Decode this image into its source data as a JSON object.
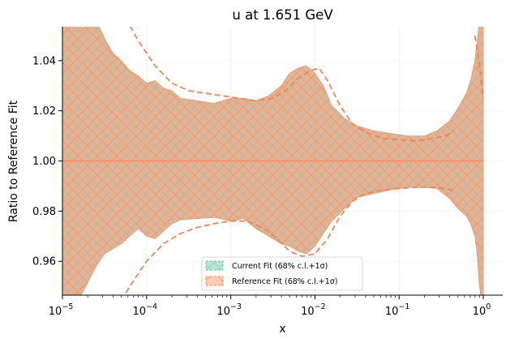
{
  "chart_data": {
    "type": "area",
    "title": "u at 1.651 GeV",
    "xlabel": "x",
    "ylabel": "Ratio to Reference Fit",
    "x_scale": "log",
    "xlim": [
      1e-05,
      1.0
    ],
    "ylim": [
      0.9465,
      1.0535
    ],
    "x_ticks": [
      {
        "value": 1e-05,
        "base": "10",
        "exp": "−5"
      },
      {
        "value": 0.0001,
        "base": "10",
        "exp": "−4"
      },
      {
        "value": 0.001,
        "base": "10",
        "exp": "−3"
      },
      {
        "value": 0.01,
        "base": "10",
        "exp": "−2"
      },
      {
        "value": 0.1,
        "base": "10",
        "exp": "−1"
      },
      {
        "value": 1.0,
        "base": "10",
        "exp": "0"
      }
    ],
    "y_ticks": [
      {
        "value": 0.96,
        "label": "0.96"
      },
      {
        "value": 0.98,
        "label": "0.98"
      },
      {
        "value": 1.0,
        "label": "1.00"
      },
      {
        "value": 1.02,
        "label": "1.02"
      },
      {
        "value": 1.04,
        "label": "1.04"
      }
    ],
    "grid": true,
    "legend_position": "lower-center",
    "series": [
      {
        "name": "Current Fit (68% c.l.+1σ)",
        "color": "#66c2a5",
        "hatch": "xx",
        "central": 1.0,
        "band": [
          [
            -5.0,
            0.938,
            1.062
          ],
          [
            -4.8,
            0.945,
            1.062
          ],
          [
            -4.6,
            0.958,
            1.056
          ],
          [
            -4.5,
            0.963,
            1.049
          ],
          [
            -4.4,
            0.965,
            1.043
          ],
          [
            -4.3,
            0.967,
            1.04
          ],
          [
            -4.2,
            0.97,
            1.036
          ],
          [
            -4.1,
            0.973,
            1.034
          ],
          [
            -4.0,
            0.97,
            1.031
          ],
          [
            -3.9,
            0.969,
            1.032
          ],
          [
            -3.8,
            0.972,
            1.029
          ],
          [
            -3.7,
            0.975,
            1.028
          ],
          [
            -3.6,
            0.9765,
            1.025
          ],
          [
            -3.4,
            0.977,
            1.024
          ],
          [
            -3.2,
            0.9775,
            1.023
          ],
          [
            -3.0,
            0.976,
            1.025
          ],
          [
            -2.85,
            0.977,
            1.025
          ],
          [
            -2.7,
            0.973,
            1.024
          ],
          [
            -2.55,
            0.97,
            1.026
          ],
          [
            -2.4,
            0.967,
            1.03
          ],
          [
            -2.3,
            0.966,
            1.035
          ],
          [
            -2.2,
            0.964,
            1.037
          ],
          [
            -2.1,
            0.963,
            1.038
          ],
          [
            -2.0,
            0.966,
            1.035
          ],
          [
            -1.9,
            0.971,
            1.03
          ],
          [
            -1.8,
            0.976,
            1.022
          ],
          [
            -1.65,
            0.981,
            1.017
          ],
          [
            -1.5,
            0.9855,
            1.014
          ],
          [
            -1.3,
            0.987,
            1.012
          ],
          [
            -1.1,
            0.9885,
            1.011
          ],
          [
            -0.9,
            0.9895,
            1.01
          ],
          [
            -0.7,
            0.9895,
            1.01
          ],
          [
            -0.55,
            0.989,
            1.012
          ],
          [
            -0.4,
            0.985,
            1.016
          ],
          [
            -0.3,
            0.981,
            1.021
          ],
          [
            -0.2,
            0.978,
            1.027
          ],
          [
            -0.15,
            0.975,
            1.032
          ],
          [
            -0.1,
            0.97,
            1.04
          ],
          [
            -0.07,
            0.962,
            1.048
          ],
          [
            -0.05,
            0.952,
            1.054
          ],
          [
            -0.03,
            0.946,
            1.058
          ],
          [
            0.0,
            0.946,
            1.058
          ]
        ]
      },
      {
        "name": "Reference Fit (68% c.l.+1σ)",
        "color": "#fc8d62",
        "hatch": "x",
        "central": 1.0,
        "band": [
          [
            -5.0,
            0.938,
            1.062
          ],
          [
            -4.8,
            0.945,
            1.062
          ],
          [
            -4.6,
            0.958,
            1.056
          ],
          [
            -4.5,
            0.963,
            1.049
          ],
          [
            -4.4,
            0.965,
            1.043
          ],
          [
            -4.3,
            0.967,
            1.04
          ],
          [
            -4.2,
            0.97,
            1.036
          ],
          [
            -4.1,
            0.973,
            1.034
          ],
          [
            -4.0,
            0.97,
            1.031
          ],
          [
            -3.9,
            0.969,
            1.032
          ],
          [
            -3.8,
            0.972,
            1.029
          ],
          [
            -3.7,
            0.975,
            1.028
          ],
          [
            -3.6,
            0.9765,
            1.025
          ],
          [
            -3.4,
            0.977,
            1.024
          ],
          [
            -3.2,
            0.9775,
            1.023
          ],
          [
            -3.0,
            0.976,
            1.025
          ],
          [
            -2.85,
            0.977,
            1.025
          ],
          [
            -2.7,
            0.973,
            1.024
          ],
          [
            -2.55,
            0.97,
            1.026
          ],
          [
            -2.4,
            0.967,
            1.03
          ],
          [
            -2.3,
            0.966,
            1.035
          ],
          [
            -2.2,
            0.964,
            1.037
          ],
          [
            -2.1,
            0.963,
            1.038
          ],
          [
            -2.0,
            0.966,
            1.035
          ],
          [
            -1.9,
            0.971,
            1.03
          ],
          [
            -1.8,
            0.976,
            1.022
          ],
          [
            -1.65,
            0.981,
            1.017
          ],
          [
            -1.5,
            0.9855,
            1.014
          ],
          [
            -1.3,
            0.987,
            1.012
          ],
          [
            -1.1,
            0.9885,
            1.011
          ],
          [
            -0.9,
            0.9895,
            1.01
          ],
          [
            -0.7,
            0.9895,
            1.01
          ],
          [
            -0.55,
            0.989,
            1.012
          ],
          [
            -0.4,
            0.985,
            1.016
          ],
          [
            -0.3,
            0.981,
            1.021
          ],
          [
            -0.2,
            0.978,
            1.027
          ],
          [
            -0.15,
            0.975,
            1.032
          ],
          [
            -0.1,
            0.97,
            1.04
          ],
          [
            -0.07,
            0.962,
            1.048
          ],
          [
            -0.05,
            0.952,
            1.054
          ],
          [
            -0.03,
            0.946,
            1.058
          ],
          [
            0.0,
            0.946,
            1.058
          ]
        ],
        "dashed_upper": [
          [
            -4.3,
            1.06
          ],
          [
            -4.1,
            1.048
          ],
          [
            -3.9,
            1.038
          ],
          [
            -3.7,
            1.031
          ],
          [
            -3.5,
            1.028
          ],
          [
            -3.3,
            1.027
          ],
          [
            -3.1,
            1.026
          ],
          [
            -2.9,
            1.025
          ],
          [
            -2.7,
            1.024
          ],
          [
            -2.5,
            1.025
          ],
          [
            -2.35,
            1.028
          ],
          [
            -2.2,
            1.033
          ],
          [
            -2.05,
            1.036
          ],
          [
            -1.95,
            1.037
          ],
          [
            -1.85,
            1.032
          ],
          [
            -1.7,
            1.022
          ],
          [
            -1.55,
            1.0145
          ],
          [
            -1.4,
            1.0115
          ],
          [
            -1.2,
            1.009
          ],
          [
            -1.0,
            1.0085
          ],
          [
            -0.8,
            1.008
          ],
          [
            -0.6,
            1.009
          ],
          [
            -0.45,
            1.01
          ],
          [
            -0.35,
            1.012
          ]
        ],
        "dashed_lower": [
          [
            -4.4,
            0.938
          ],
          [
            -4.2,
            0.95
          ],
          [
            -4.0,
            0.96
          ],
          [
            -3.8,
            0.967
          ],
          [
            -3.6,
            0.971
          ],
          [
            -3.4,
            0.9735
          ],
          [
            -3.2,
            0.975
          ],
          [
            -3.0,
            0.976
          ],
          [
            -2.8,
            0.976
          ],
          [
            -2.6,
            0.973
          ],
          [
            -2.45,
            0.969
          ],
          [
            -2.3,
            0.964
          ],
          [
            -2.15,
            0.962
          ],
          [
            -2.0,
            0.963
          ],
          [
            -1.85,
            0.969
          ],
          [
            -1.7,
            0.978
          ],
          [
            -1.55,
            0.984
          ],
          [
            -1.4,
            0.987
          ],
          [
            -1.2,
            0.9885
          ],
          [
            -1.0,
            0.989
          ],
          [
            -0.8,
            0.9895
          ],
          [
            -0.6,
            0.9895
          ],
          [
            -0.45,
            0.989
          ],
          [
            -0.35,
            0.988
          ]
        ]
      }
    ]
  }
}
